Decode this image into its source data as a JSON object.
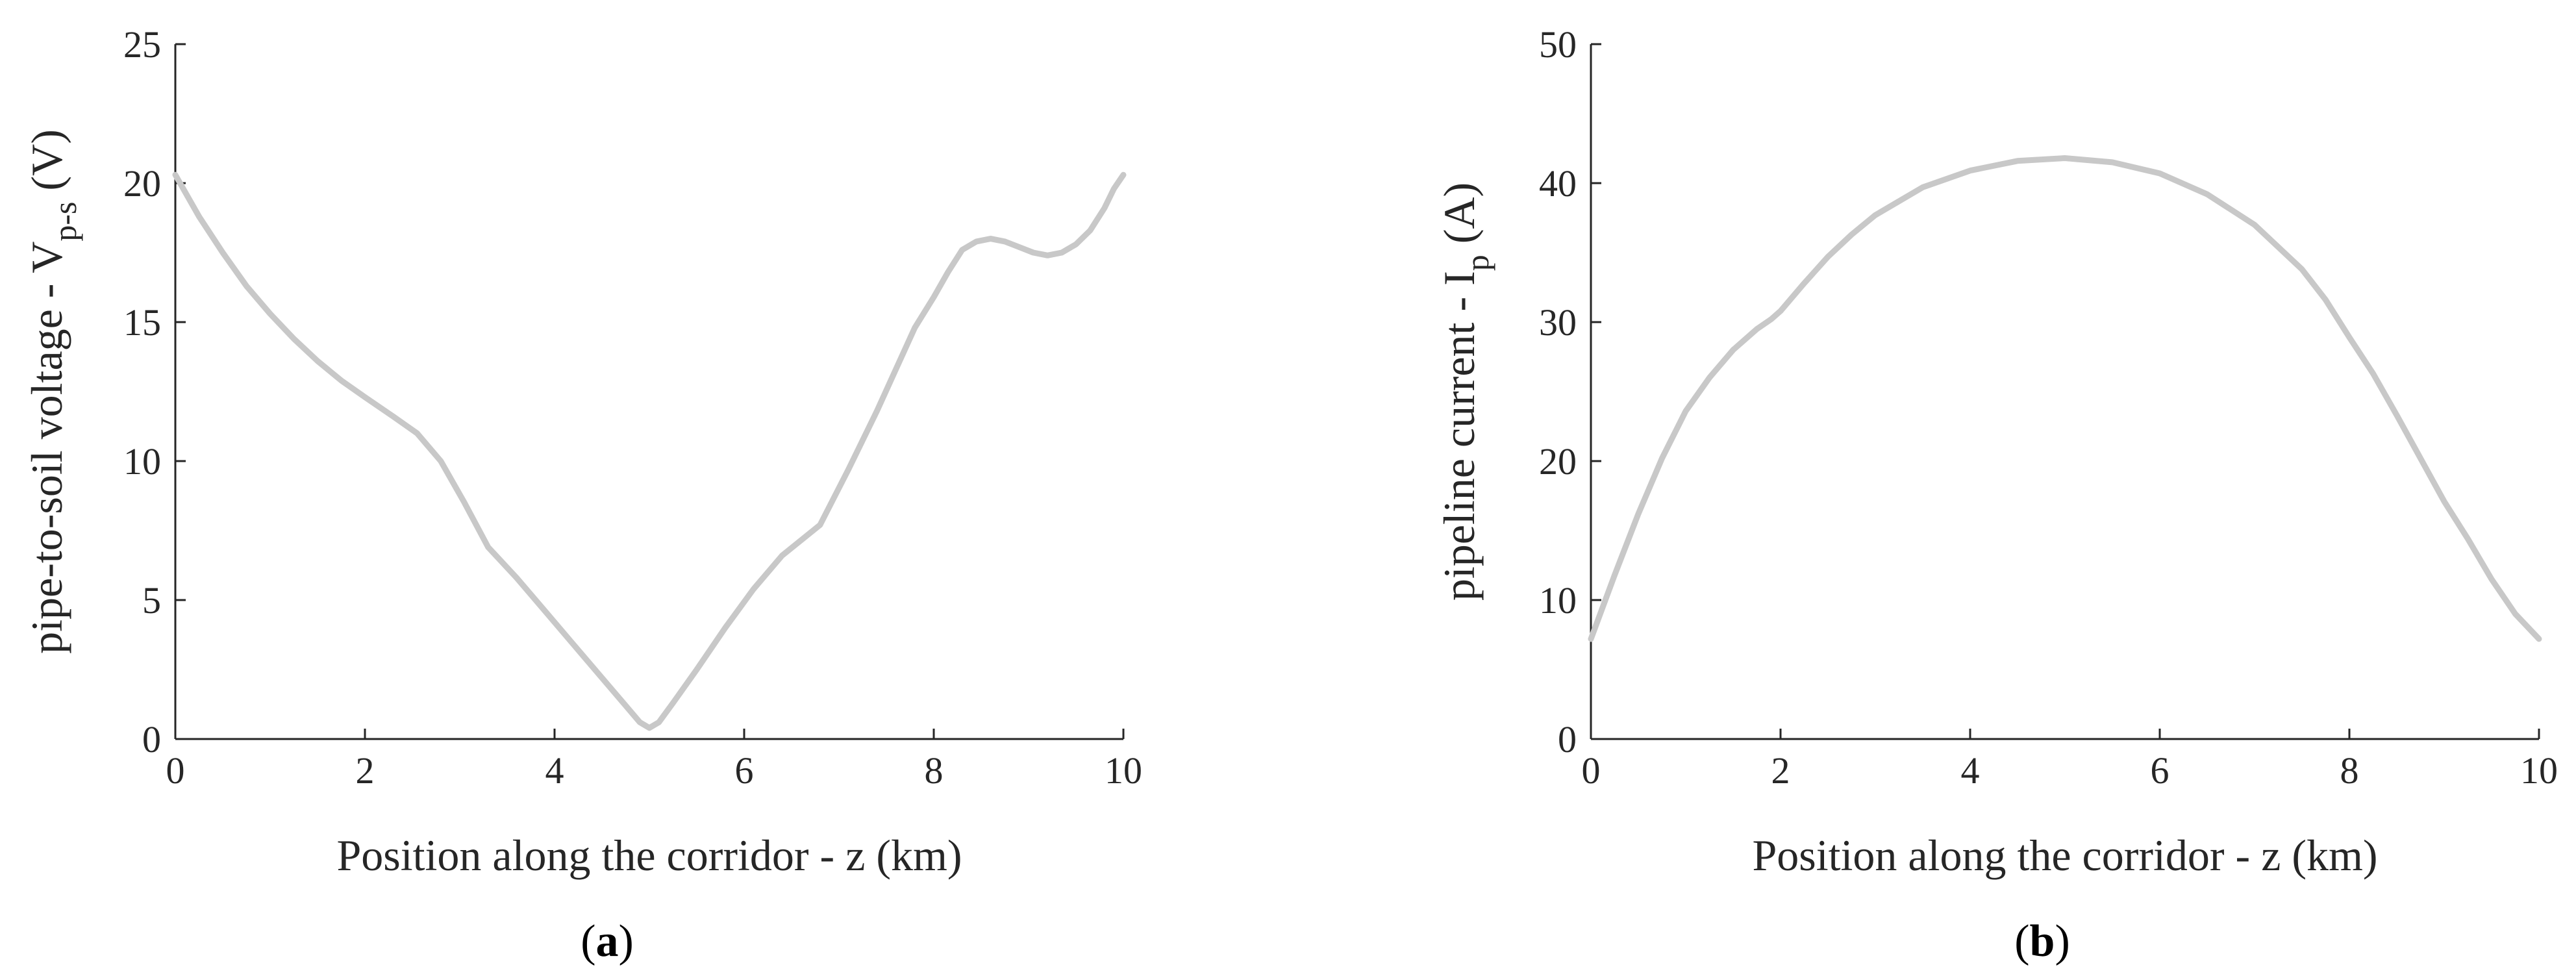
{
  "line_color": "#c8c8c8",
  "axis_color": "#262626",
  "chart_data": [
    {
      "type": "line",
      "xlabel": "Position along the corridor - z (km)",
      "ylabel": {
        "main": "pipe-to-soil voltage - V",
        "subscript": "p-s",
        "unit": " (V)"
      },
      "xlim": [
        0,
        10
      ],
      "ylim": [
        0,
        25
      ],
      "xticks": [
        "0",
        "2",
        "4",
        "6",
        "8",
        "10"
      ],
      "yticks": [
        "0",
        "5",
        "10",
        "15",
        "20",
        "25"
      ],
      "grid": false,
      "panel_label": {
        "open": "(",
        "letter": "a",
        "close": ")"
      },
      "series": [
        {
          "x": [
            0,
            0.25,
            0.5,
            0.75,
            1.0,
            1.25,
            1.5,
            1.75,
            2.0,
            2.3,
            2.55,
            2.8,
            3.05,
            3.3,
            3.6,
            3.9,
            4.2,
            4.5,
            4.75,
            4.9,
            5.0,
            5.1,
            5.25,
            5.5,
            5.8,
            6.1,
            6.4,
            6.8,
            7.1,
            7.4,
            7.6,
            7.8,
            8.0,
            8.15,
            8.3,
            8.45,
            8.6,
            8.75,
            8.9,
            9.05,
            9.2,
            9.35,
            9.5,
            9.65,
            9.8,
            9.9,
            10.0
          ],
          "y": [
            20.3,
            18.8,
            17.5,
            16.3,
            15.3,
            14.4,
            13.6,
            12.9,
            12.3,
            11.6,
            11.0,
            10.0,
            8.5,
            6.9,
            5.8,
            4.6,
            3.4,
            2.2,
            1.2,
            0.6,
            0.4,
            0.6,
            1.3,
            2.5,
            4.0,
            5.4,
            6.6,
            7.7,
            9.7,
            11.8,
            13.3,
            14.8,
            15.9,
            16.8,
            17.6,
            17.9,
            18.0,
            17.9,
            17.7,
            17.5,
            17.4,
            17.5,
            17.8,
            18.3,
            19.1,
            19.8,
            20.3
          ]
        }
      ]
    },
    {
      "type": "line",
      "xlabel": "Position along the corridor - z (km)",
      "ylabel": {
        "main": "pipeline current - I",
        "subscript": "p",
        "unit": " (A)"
      },
      "xlim": [
        0,
        10
      ],
      "ylim": [
        0,
        50
      ],
      "xticks": [
        "0",
        "2",
        "4",
        "6",
        "8",
        "10"
      ],
      "yticks": [
        "0",
        "10",
        "20",
        "30",
        "40",
        "50"
      ],
      "grid": false,
      "panel_label": {
        "open": "(",
        "letter": "b",
        "close": ")"
      },
      "series": [
        {
          "x": [
            0,
            0.25,
            0.5,
            0.75,
            1.0,
            1.25,
            1.5,
            1.75,
            1.9,
            2.0,
            2.25,
            2.5,
            2.75,
            3.0,
            3.5,
            4.0,
            4.5,
            5.0,
            5.5,
            6.0,
            6.5,
            7.0,
            7.5,
            7.75,
            8.0,
            8.25,
            8.5,
            8.75,
            9.0,
            9.25,
            9.5,
            9.75,
            10.0
          ],
          "y": [
            7.2,
            11.8,
            16.2,
            20.2,
            23.6,
            26.0,
            28.0,
            29.5,
            30.2,
            30.8,
            32.8,
            34.7,
            36.3,
            37.7,
            39.7,
            40.9,
            41.6,
            41.8,
            41.5,
            40.7,
            39.2,
            37.0,
            33.8,
            31.6,
            28.9,
            26.3,
            23.3,
            20.2,
            17.1,
            14.4,
            11.5,
            9.0,
            7.2
          ]
        }
      ]
    }
  ]
}
